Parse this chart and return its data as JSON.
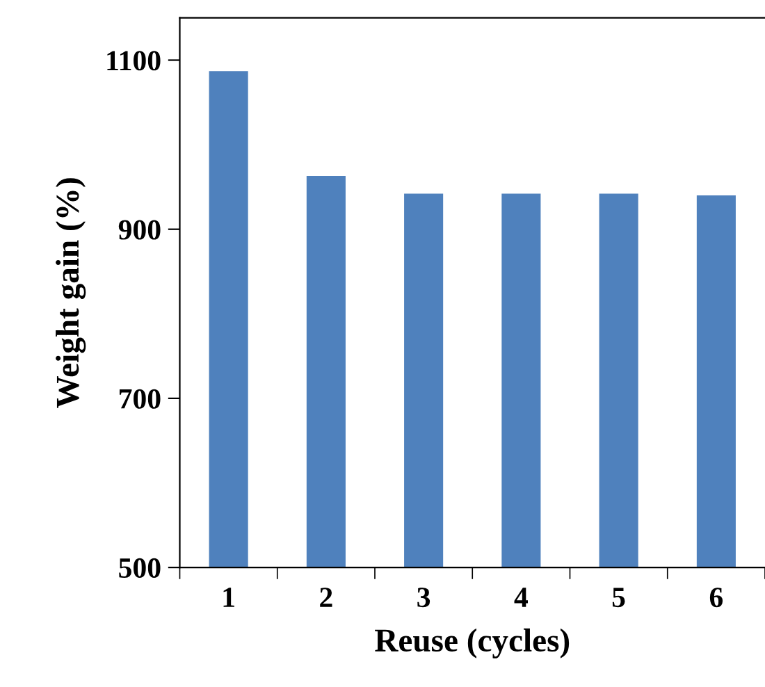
{
  "chart_data": {
    "type": "bar",
    "xlabel": "Reuse (cycles)",
    "ylabel": "Weight gain (%)",
    "categories": [
      "1",
      "2",
      "3",
      "4",
      "5",
      "6"
    ],
    "values": [
      1087,
      963,
      942,
      942,
      942,
      940
    ],
    "color": "#4f81bd",
    "ylim": [
      500,
      1150
    ],
    "yticks": [
      500,
      700,
      900,
      1100
    ],
    "grid": false,
    "legend": false
  }
}
